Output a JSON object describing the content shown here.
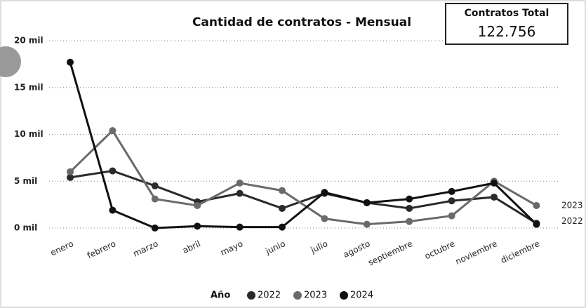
{
  "chart_data": {
    "type": "line",
    "title": "Cantidad de contratos - Mensual",
    "categories": [
      "enero",
      "febrero",
      "marzo",
      "abril",
      "mayo",
      "junio",
      "julio",
      "agosto",
      "septiembre",
      "octubre",
      "noviembre",
      "diciembre"
    ],
    "series": [
      {
        "name": "2022",
        "color": "#2a2a2a",
        "end_label": true,
        "values": [
          5400,
          6100,
          4500,
          2800,
          3700,
          2100,
          3700,
          2700,
          2100,
          2900,
          3300,
          500
        ]
      },
      {
        "name": "2023",
        "color": "#6a6a6a",
        "end_label": true,
        "values": [
          6000,
          10400,
          3100,
          2400,
          4800,
          4000,
          1000,
          400,
          700,
          1300,
          5000,
          2400
        ]
      },
      {
        "name": "2024",
        "color": "#111111",
        "end_label": false,
        "values": [
          17700,
          1900,
          0,
          200,
          100,
          100,
          3800,
          2700,
          3100,
          3900,
          4800,
          400
        ]
      }
    ],
    "ylim": [
      0,
      20000
    ],
    "yticks": [
      {
        "value": 0,
        "label": "0 mil"
      },
      {
        "value": 5000,
        "label": "5 mil"
      },
      {
        "value": 10000,
        "label": "10 mil"
      },
      {
        "value": 15000,
        "label": "15 mil"
      },
      {
        "value": 20000,
        "label": "20 mil"
      }
    ],
    "grid": true,
    "legend_title": "Año",
    "legend": "bottom"
  },
  "kpi": {
    "label": "Contratos Total",
    "value": "122.756"
  }
}
